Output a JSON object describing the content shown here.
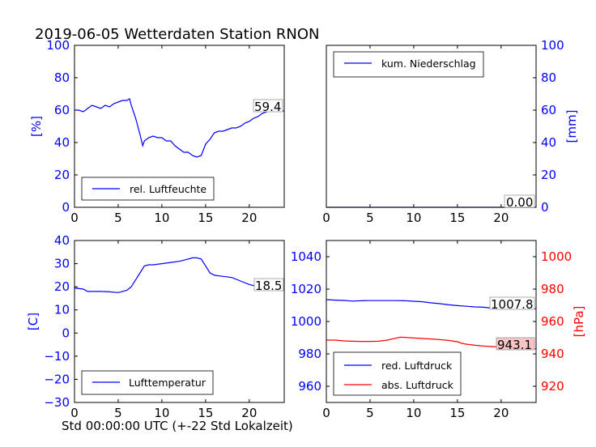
{
  "title": "2019-06-05 Wetterdaten Station RNON",
  "xlabel": "Std 00:00:00 UTC (+-22 Std Lokalzeit)",
  "colors": {
    "blue": "#0000ff",
    "red": "#ff0000",
    "box_red": "#f7c5c5"
  },
  "chart_data": [
    {
      "id": "humidity",
      "type": "line",
      "ylabel": "[%]",
      "xlim": [
        0,
        24
      ],
      "ylim": [
        0,
        100
      ],
      "xticks": [
        "0",
        "5",
        "10",
        "15",
        "20"
      ],
      "yticks": [
        "0",
        "20",
        "40",
        "60",
        "80",
        "100"
      ],
      "legend": "top-left",
      "last_value": "59.4",
      "series": [
        {
          "name": "rel. Luftfeuchte",
          "color": "#0000ff",
          "x": [
            0,
            0.5,
            1,
            1.5,
            2,
            2.5,
            3,
            3.5,
            4,
            4.5,
            5,
            5.5,
            6,
            6.3,
            6.5,
            7,
            7.5,
            7.8,
            8,
            8.5,
            9,
            9.5,
            10,
            10.5,
            11,
            11.5,
            12,
            12.5,
            13,
            13.5,
            14,
            14.5,
            15,
            15.5,
            16,
            16.5,
            17,
            17.5,
            18,
            18.5,
            19,
            19.5,
            20,
            20.5,
            21,
            21.5,
            22,
            22.5,
            23,
            23.5,
            24
          ],
          "y": [
            60,
            60,
            59,
            61,
            63,
            62,
            61,
            63,
            62,
            64,
            65,
            66,
            66,
            67,
            63,
            55,
            45,
            38,
            41,
            43,
            44,
            43,
            43,
            41,
            41,
            38,
            36,
            34,
            34,
            32,
            31,
            32,
            39,
            42,
            46,
            47,
            47,
            48,
            49,
            49,
            50,
            52,
            53,
            55,
            56,
            58,
            59,
            60,
            61,
            60,
            59.4
          ]
        }
      ]
    },
    {
      "id": "precip",
      "type": "line",
      "ylabel": "[mm]",
      "xlim": [
        0,
        24
      ],
      "ylim": [
        0,
        100
      ],
      "xticks": [
        "0",
        "5",
        "10",
        "15",
        "20"
      ],
      "yticks": [
        "0",
        "20",
        "40",
        "60",
        "80",
        "100"
      ],
      "legend": "top-left",
      "last_value": "0.00",
      "series": [
        {
          "name": "kum. Niederschlag",
          "color": "#0000ff",
          "x": [
            0,
            24
          ],
          "y": [
            0,
            0
          ]
        }
      ]
    },
    {
      "id": "temperature",
      "type": "line",
      "ylabel": "[C]",
      "xlim": [
        0,
        24
      ],
      "ylim": [
        -30,
        40
      ],
      "xticks": [
        "0",
        "5",
        "10",
        "15",
        "20"
      ],
      "yticks": [
        "−30",
        "−20",
        "−10",
        "0",
        "10",
        "20",
        "30",
        "40"
      ],
      "legend": "bottom-left",
      "last_value": "18.5",
      "series": [
        {
          "name": "Lufttemperatur",
          "color": "#0000ff",
          "x": [
            0,
            1,
            1.5,
            2,
            3,
            4,
            5,
            6,
            6.5,
            7,
            7.5,
            8,
            8.5,
            9,
            10,
            11,
            12,
            13,
            13.5,
            14,
            14.5,
            15,
            15.5,
            16,
            17,
            18,
            19,
            20,
            21,
            22,
            23,
            24
          ],
          "y": [
            19.5,
            19,
            18,
            18,
            18,
            17.8,
            17.5,
            18.5,
            20,
            23,
            26,
            29,
            29.5,
            29.5,
            30,
            30.5,
            31,
            32,
            32.5,
            32.5,
            32,
            29,
            26,
            25,
            24.5,
            24,
            22.5,
            21,
            20,
            19,
            18.8,
            18.5
          ]
        }
      ]
    },
    {
      "id": "pressure",
      "type": "line",
      "ylabel_right": "[hPa]",
      "xlim": [
        0,
        24
      ],
      "ylim_left": [
        950,
        1050
      ],
      "ylim_right": [
        910,
        1010
      ],
      "xticks": [
        "0",
        "5",
        "10",
        "15",
        "20"
      ],
      "yticks_left": [
        "960",
        "980",
        "1000",
        "1020",
        "1040"
      ],
      "yticks_right": [
        "920",
        "940",
        "960",
        "980",
        "1000"
      ],
      "legend": "bottom-left",
      "last_value_left": "1007.8",
      "last_value_right": "943.1",
      "series": [
        {
          "name": "red. Luftdruck",
          "color": "#0000ff",
          "axis": "left",
          "x": [
            0,
            1,
            2,
            3,
            4,
            5,
            6,
            7,
            8,
            9,
            10,
            11,
            12,
            13,
            14,
            15,
            16,
            17,
            18,
            19,
            20,
            21,
            22,
            23,
            24
          ],
          "y": [
            1013.5,
            1013.2,
            1013,
            1012.6,
            1012.8,
            1012.9,
            1012.9,
            1012.9,
            1012.9,
            1012.8,
            1012.5,
            1012.2,
            1011.5,
            1011,
            1010.3,
            1009.8,
            1009.4,
            1009,
            1008.8,
            1008.2,
            1008,
            1007.8,
            1007.8,
            1007.8,
            1007.8
          ]
        },
        {
          "name": "abs. Luftdruck",
          "color": "#ff0000",
          "axis": "right",
          "x": [
            0,
            1,
            2,
            3,
            4,
            5,
            6,
            7,
            8,
            8.5,
            9,
            10,
            11,
            12,
            13,
            14,
            15,
            15.5,
            16,
            17,
            18,
            19,
            20,
            21,
            22,
            23,
            24
          ],
          "y": [
            948.5,
            948.5,
            948,
            947.8,
            947.7,
            947.7,
            947.8,
            948.5,
            949.8,
            950.3,
            950.2,
            949.8,
            949.5,
            949.2,
            948.8,
            948.3,
            947.5,
            946.5,
            946,
            945.3,
            944.8,
            944.5,
            944.2,
            944,
            943.8,
            943.5,
            943.1
          ]
        }
      ]
    }
  ]
}
